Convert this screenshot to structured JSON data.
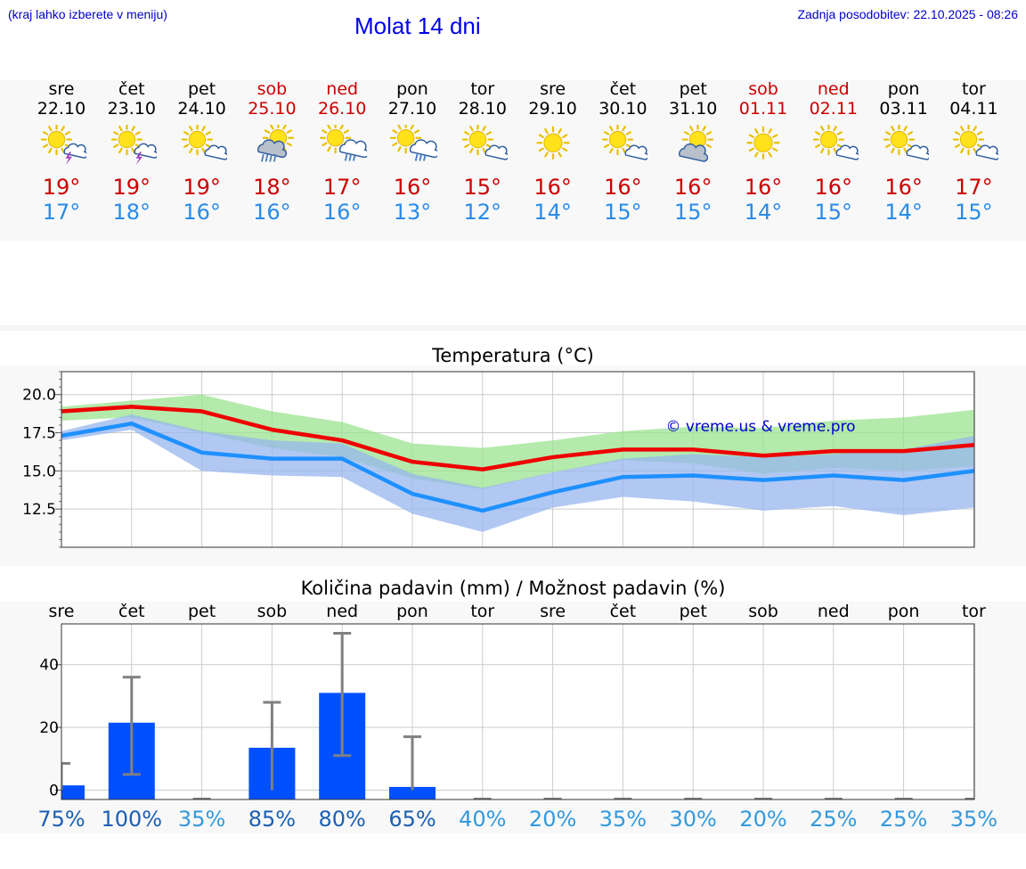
{
  "header": {
    "hint": "(kraj lahko izberete v meniju)",
    "title": "Molat 14 dni",
    "updated": "Zadnja posodobitev: 22.10.2025 - 08:26"
  },
  "days": [
    {
      "name": "sre",
      "date": "22.10",
      "weekend": false,
      "icon": "sun-cloud-lightning-icon",
      "tmax": "19°",
      "tmin": "17°"
    },
    {
      "name": "čet",
      "date": "23.10",
      "weekend": false,
      "icon": "sun-cloud-lightning-icon",
      "tmax": "19°",
      "tmin": "18°"
    },
    {
      "name": "pet",
      "date": "24.10",
      "weekend": false,
      "icon": "sun-small-cloud-icon",
      "tmax": "19°",
      "tmin": "16°"
    },
    {
      "name": "sob",
      "date": "25.10",
      "weekend": true,
      "icon": "sun-dark-cloud-rain-icon",
      "tmax": "18°",
      "tmin": "16°"
    },
    {
      "name": "ned",
      "date": "26.10",
      "weekend": true,
      "icon": "sun-cloud-rain-icon",
      "tmax": "17°",
      "tmin": "16°"
    },
    {
      "name": "pon",
      "date": "27.10",
      "weekend": false,
      "icon": "sun-cloud-rain-icon",
      "tmax": "16°",
      "tmin": "13°"
    },
    {
      "name": "tor",
      "date": "28.10",
      "weekend": false,
      "icon": "sun-small-cloud-icon",
      "tmax": "15°",
      "tmin": "12°"
    },
    {
      "name": "sre",
      "date": "29.10",
      "weekend": false,
      "icon": "sun-icon",
      "tmax": "16°",
      "tmin": "14°"
    },
    {
      "name": "čet",
      "date": "30.10",
      "weekend": false,
      "icon": "sun-small-cloud-icon",
      "tmax": "16°",
      "tmin": "15°"
    },
    {
      "name": "pet",
      "date": "31.10",
      "weekend": false,
      "icon": "sun-dark-cloud-icon",
      "tmax": "16°",
      "tmin": "15°"
    },
    {
      "name": "sob",
      "date": "01.11",
      "weekend": true,
      "icon": "sun-icon",
      "tmax": "16°",
      "tmin": "14°"
    },
    {
      "name": "ned",
      "date": "02.11",
      "weekend": true,
      "icon": "sun-small-cloud-icon",
      "tmax": "16°",
      "tmin": "15°"
    },
    {
      "name": "pon",
      "date": "03.11",
      "weekend": false,
      "icon": "sun-small-cloud-icon",
      "tmax": "16°",
      "tmin": "14°"
    },
    {
      "name": "tor",
      "date": "04.11",
      "weekend": false,
      "icon": "sun-small-cloud-icon",
      "tmax": "17°",
      "tmin": "15°"
    }
  ],
  "colors": {
    "max_line": "#ee0000",
    "min_line": "#1e90ff",
    "max_band": "#9be38f",
    "min_band": "#97b5ee",
    "overlap_band": "#77bb9c",
    "bar": "#0050ff",
    "error_bar": "#808080",
    "watermark": "#0000cc",
    "weekend_text": "#cc0000"
  },
  "chart_data": [
    {
      "type": "line",
      "title": "Temperatura (°C)",
      "watermark": "© vreme.us & vreme.pro",
      "ylim": [
        10.0,
        21.5
      ],
      "yticks": [
        "20.0",
        "17.5",
        "15.0",
        "12.5"
      ],
      "series": [
        {
          "values": [
            18.9,
            19.2,
            18.9,
            17.7,
            17.0,
            15.6,
            15.1,
            15.9,
            16.4,
            16.4,
            16.0,
            16.3,
            16.3,
            16.7
          ],
          "band_low": [
            18.3,
            18.5,
            17.5,
            16.5,
            15.9,
            14.5,
            13.8,
            14.9,
            15.7,
            15.5,
            14.8,
            15.2,
            15.0,
            15.3
          ],
          "band_high": [
            19.2,
            19.6,
            20.0,
            18.9,
            18.2,
            16.8,
            16.5,
            17.0,
            17.6,
            17.9,
            17.8,
            18.3,
            18.5,
            19.0
          ]
        },
        {
          "values": [
            17.3,
            18.1,
            16.2,
            15.8,
            15.8,
            13.5,
            12.4,
            13.6,
            14.6,
            14.7,
            14.4,
            14.7,
            14.4,
            15.0
          ],
          "band_low": [
            17.0,
            17.7,
            15.0,
            14.7,
            14.6,
            12.2,
            11.0,
            12.6,
            13.3,
            13.0,
            12.4,
            12.7,
            12.1,
            12.6
          ],
          "band_high": [
            17.6,
            18.7,
            17.6,
            17.0,
            16.8,
            14.8,
            13.9,
            14.9,
            15.8,
            16.1,
            15.9,
            16.1,
            16.4,
            17.3
          ]
        }
      ]
    },
    {
      "type": "bar",
      "title": "Količina padavin (mm) / Možnost padavin (%)",
      "categories": [
        "sre",
        "čet",
        "pet",
        "sob",
        "ned",
        "pon",
        "tor",
        "sre",
        "čet",
        "pet",
        "sob",
        "ned",
        "pon",
        "tor"
      ],
      "ylim": [
        -3,
        53
      ],
      "yticks": [
        "40",
        "20",
        "0"
      ],
      "values": [
        1.5,
        21.5,
        0,
        13.5,
        31,
        1.0,
        0,
        0,
        0,
        0,
        0,
        0,
        0,
        0
      ],
      "error_low": [
        0,
        5,
        0,
        0,
        11,
        0,
        0,
        0,
        0,
        0,
        0,
        0,
        0,
        0
      ],
      "error_high": [
        8.5,
        36,
        0,
        28,
        50,
        17,
        0,
        0,
        0,
        0,
        0,
        0,
        0,
        0
      ],
      "probabilities": [
        "75%",
        "100%",
        "35%",
        "85%",
        "80%",
        "65%",
        "40%",
        "20%",
        "35%",
        "30%",
        "20%",
        "25%",
        "25%",
        "35%"
      ],
      "probability_colors": [
        "#1c5fb4",
        "#1c5fb4",
        "#3399dd",
        "#1c5fb4",
        "#1c5fb4",
        "#1c5fb4",
        "#3399dd",
        "#3399dd",
        "#3399dd",
        "#3399dd",
        "#3399dd",
        "#3399dd",
        "#3399dd",
        "#3399dd"
      ]
    }
  ]
}
